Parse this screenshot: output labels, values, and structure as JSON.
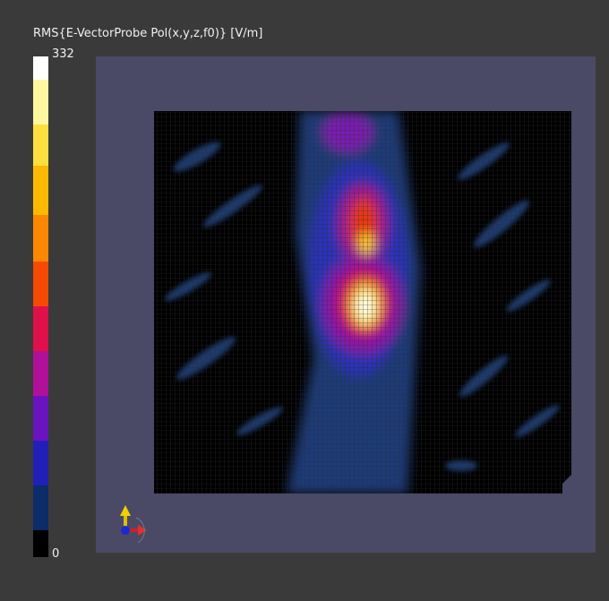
{
  "title": "RMS{E-VectorProbe Pol(x,y,z,f0)} [V/m]",
  "colorbar": {
    "max": 332,
    "min": 0
  }
}
